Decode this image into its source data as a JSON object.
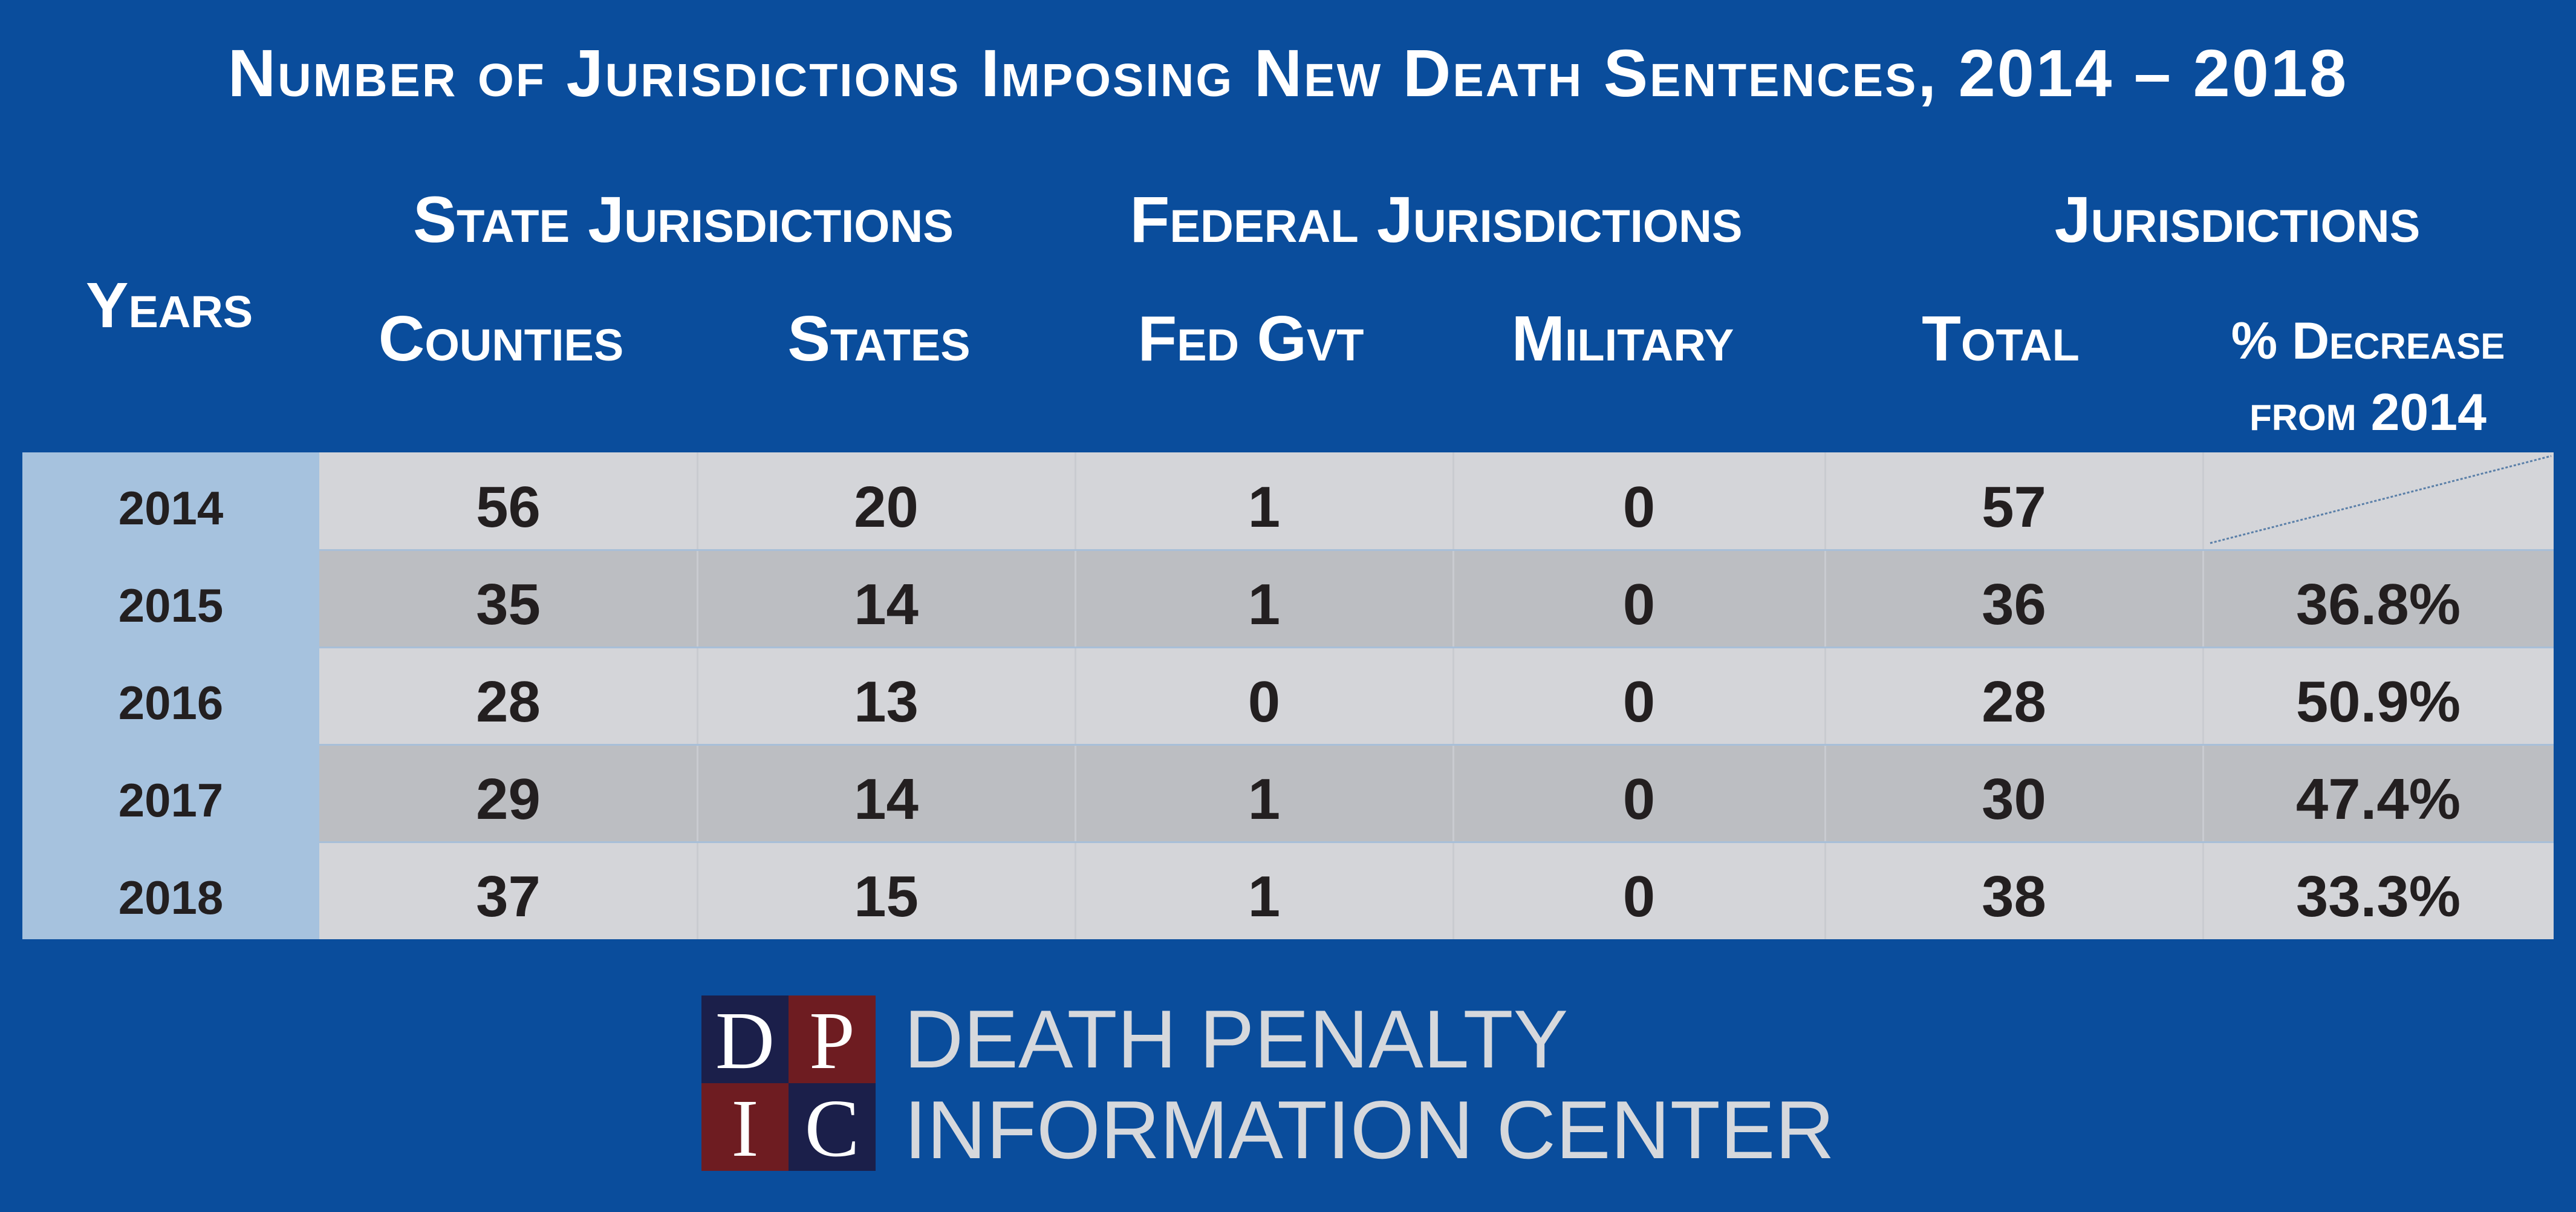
{
  "title": "Number of Jurisdictions Imposing New Death Sentences, 2014 – 2018",
  "headers": {
    "years": "Years",
    "group_state": "State Jurisdictions",
    "group_federal": "Federal Jurisdictions",
    "group_total": "Jurisdictions",
    "counties": "Counties",
    "states": "States",
    "fed_gvt": "Fed Gvt",
    "military": "Military",
    "total": "Total",
    "pct_line1": "% Decrease",
    "pct_line2": "from 2014"
  },
  "chart_data": {
    "type": "table",
    "title": "Number of Jurisdictions Imposing New Death Sentences, 2014 – 2018",
    "columns": [
      "Years",
      "Counties",
      "States",
      "Fed Gvt",
      "Military",
      "Total",
      "% Decrease from 2014"
    ],
    "rows": [
      {
        "year": "2014",
        "counties": "56",
        "states": "20",
        "fed_gvt": "1",
        "military": "0",
        "total": "57",
        "pct_decrease": ""
      },
      {
        "year": "2015",
        "counties": "35",
        "states": "14",
        "fed_gvt": "1",
        "military": "0",
        "total": "36",
        "pct_decrease": "36.8%"
      },
      {
        "year": "2016",
        "counties": "28",
        "states": "13",
        "fed_gvt": "0",
        "military": "0",
        "total": "28",
        "pct_decrease": "50.9%"
      },
      {
        "year": "2017",
        "counties": "29",
        "states": "14",
        "fed_gvt": "1",
        "military": "0",
        "total": "30",
        "pct_decrease": "47.4%"
      },
      {
        "year": "2018",
        "counties": "37",
        "states": "15",
        "fed_gvt": "1",
        "military": "0",
        "total": "38",
        "pct_decrease": "33.3%"
      }
    ]
  },
  "logo": {
    "letters": [
      "D",
      "P",
      "I",
      "C"
    ],
    "line1": "DEATH PENALTY",
    "line2": "INFORMATION CENTER"
  },
  "colors": {
    "background": "#0a4d9c",
    "year_column": "#a6c2de",
    "row_light": "#d4d5d9",
    "row_dark": "#bcbec2",
    "logo_navy": "#1b1f4a",
    "logo_red": "#6e1c21"
  }
}
